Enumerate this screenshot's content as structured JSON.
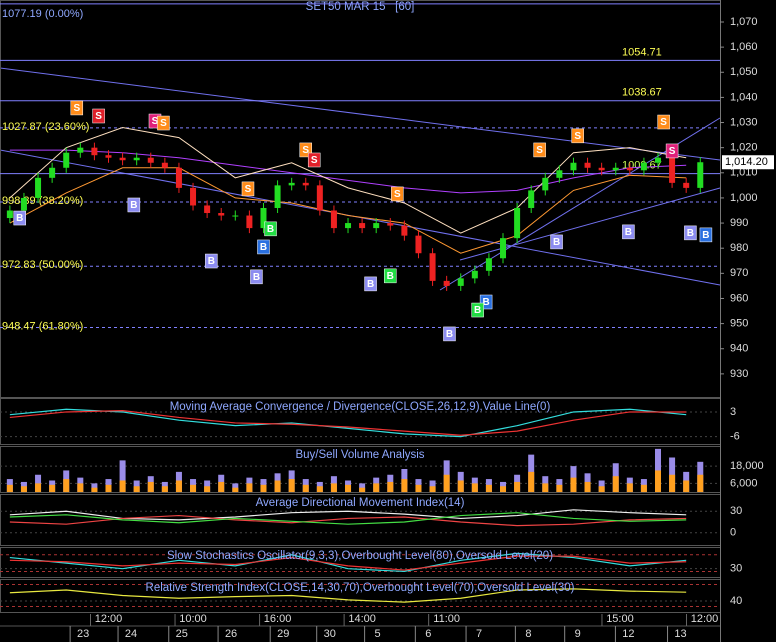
{
  "chart_data": [
    {
      "type": "candlestick",
      "title": "SET50 MAR 15   [60]",
      "xlim": [
        -0.7,
        50.4
      ],
      "xticks": [
        {
          "value": 7.0,
          "label": "12:00"
        },
        {
          "value": 13.0,
          "label": "10:00"
        },
        {
          "value": 19.0,
          "label": "16:00"
        },
        {
          "value": 25.0,
          "label": "14:00"
        },
        {
          "value": 31.0,
          "label": "11:00"
        },
        {
          "value": 43.3,
          "label": "15:00"
        },
        {
          "value": 49.3,
          "label": "12:00"
        }
      ],
      "date_ticks": [
        {
          "value": 5.2,
          "label": "23"
        },
        {
          "value": 8.6,
          "label": "24"
        },
        {
          "value": 12.2,
          "label": "25"
        },
        {
          "value": 15.7,
          "label": "26"
        },
        {
          "value": 19.4,
          "label": "29"
        },
        {
          "value": 22.7,
          "label": "30"
        },
        {
          "value": 26.1,
          "label": "5"
        },
        {
          "value": 29.7,
          "label": "6"
        },
        {
          "value": 33.3,
          "label": "7"
        },
        {
          "value": 36.8,
          "label": "8"
        },
        {
          "value": 40.3,
          "label": "9"
        },
        {
          "value": 43.9,
          "label": "12"
        },
        {
          "value": 47.6,
          "label": "13"
        }
      ],
      "ylim": [
        920.8,
        1078.75
      ],
      "yticks": [
        {
          "value": 1070,
          "label": "1,070"
        },
        {
          "value": 1060,
          "label": "1,060"
        },
        {
          "value": 1050,
          "label": "1,050"
        },
        {
          "value": 1040,
          "label": "1,040"
        },
        {
          "value": 1030,
          "label": "1,030"
        },
        {
          "value": 1020,
          "label": "1,020"
        },
        {
          "value": 1010,
          "label": "1,010"
        },
        {
          "value": 1000,
          "label": "1,000"
        },
        990,
        980,
        970,
        960,
        950,
        940,
        930
      ],
      "fib_levels": [
        {
          "value": 1077.19,
          "label": "1077.19 (0.00%)"
        },
        {
          "value": 1027.87,
          "label": "1027.87 (23.60%)"
        },
        {
          "value": 998.39,
          "label": "998.39 (38.20%)"
        },
        {
          "value": 972.83,
          "label": "972.83 (50.00%)"
        },
        {
          "value": 948.47,
          "label": "948.47 (61.80%)"
        }
      ],
      "price_lines": [
        1054.71,
        1038.67,
        1009.67
      ],
      "last": {
        "value": 1014.2,
        "label": "1,014.20"
      },
      "up_color": "#22dd22",
      "down_color": "#ee2222",
      "open": [
        992,
        995,
        1000,
        1008,
        1012,
        1018,
        1020,
        1017,
        1016,
        1015,
        1016,
        1014,
        1012,
        1004,
        997,
        994,
        993,
        993,
        988,
        996,
        1005,
        1006,
        1005,
        995,
        988,
        990,
        988,
        990,
        989,
        985,
        978,
        967,
        965,
        968,
        971,
        976,
        984,
        996,
        1003,
        1008,
        1011,
        1014,
        1012,
        1011,
        1012,
        1011,
        1014,
        1016,
        1006,
        1004
      ],
      "high": [
        997,
        1002,
        1010,
        1014,
        1020,
        1022,
        1022,
        1019,
        1018,
        1018,
        1018,
        1016,
        1014,
        1006,
        999,
        996,
        995,
        995,
        998,
        1007,
        1008,
        1008,
        1007,
        997,
        992,
        992,
        992,
        992,
        991,
        987,
        980,
        969,
        970,
        973,
        978,
        986,
        998,
        1005,
        1010,
        1013,
        1016,
        1016,
        1014,
        1014,
        1014,
        1016,
        1018,
        1018,
        1008,
        1016.2
      ],
      "low": [
        990,
        993,
        998,
        1006,
        1010,
        1016,
        1015,
        1014,
        1013,
        1013,
        1012,
        1010,
        1002,
        995,
        992,
        991,
        991,
        986,
        986,
        994,
        1003,
        1003,
        993,
        986,
        986,
        986,
        986,
        987,
        983,
        976,
        965,
        963,
        963,
        966,
        969,
        974,
        982,
        994,
        1001,
        1006,
        1009,
        1010,
        1009,
        1009,
        1009,
        1009,
        1012,
        1004,
        1002,
        1002
      ],
      "close": [
        995,
        1000,
        1008,
        1012,
        1018,
        1020,
        1017,
        1016,
        1015,
        1016,
        1014,
        1012,
        1004,
        997,
        994,
        993,
        993,
        988,
        996,
        1005,
        1006,
        1005,
        995,
        988,
        990,
        988,
        990,
        989,
        985,
        978,
        967,
        965,
        968,
        971,
        976,
        984,
        996,
        1003,
        1008,
        1011,
        1014,
        1012,
        1011,
        1012,
        1011,
        1014,
        1016,
        1006,
        1004,
        1014.2
      ],
      "overlays": {
        "x": [
          0,
          4,
          8,
          12,
          16,
          20,
          24,
          28,
          32,
          36,
          40,
          44,
          48
        ],
        "series": [
          {
            "color": "#ff9933",
            "values": [
              990,
              1002,
              1012,
              1012,
              1000,
              998,
              993,
              990,
              978,
              985,
              1003,
              1009,
              1008
            ]
          },
          {
            "color": "#b040ff",
            "values": [
              1019,
              1019,
              1018,
              1016,
              1013,
              1010,
              1007,
              1004,
              1002,
              1003,
              1008,
              1012,
              1013
            ]
          },
          {
            "color": "#ffe0c0",
            "values": [
              1000,
              1020,
              1028,
              1024,
              1008,
              1014,
              1004,
              998,
              986,
              996,
              1018,
              1020,
              1016
            ]
          }
        ]
      },
      "signals": [
        {
          "label": "S",
          "color": "#ff8c1a",
          "x": 4.75,
          "y": 1035.8
        },
        {
          "label": "S",
          "color": "#e0202a",
          "x": 6.3,
          "y": 1032.6
        },
        {
          "label": "S",
          "color": "#e0207a",
          "x": 10.3,
          "y": 1030.6
        },
        {
          "label": "S",
          "color": "#ff8c1a",
          "x": 10.9,
          "y": 1029.8
        },
        {
          "label": "S",
          "color": "#ff8c1a",
          "x": 21.0,
          "y": 1019.1
        },
        {
          "label": "S",
          "color": "#e0202a",
          "x": 21.6,
          "y": 1015.1
        },
        {
          "label": "S",
          "color": "#ff8c1a",
          "x": 16.9,
          "y": 1003.6
        },
        {
          "label": "S",
          "color": "#ff8c1a",
          "x": 27.5,
          "y": 1001.6
        },
        {
          "label": "S",
          "color": "#ff8c1a",
          "x": 37.6,
          "y": 1019.1
        },
        {
          "label": "S",
          "color": "#ff8c1a",
          "x": 40.3,
          "y": 1024.7
        },
        {
          "label": "S",
          "color": "#ff8c1a",
          "x": 46.4,
          "y": 1030.2
        },
        {
          "label": "S",
          "color": "#e0207a",
          "x": 47.0,
          "y": 1018.7
        },
        {
          "label": "B",
          "color": "#8c8cf0",
          "x": 0.7,
          "y": 992.0
        },
        {
          "label": "B",
          "color": "#8c8cf0",
          "x": 8.8,
          "y": 997.2
        },
        {
          "label": "B",
          "color": "#8c8cf0",
          "x": 14.3,
          "y": 974.9
        },
        {
          "label": "B",
          "color": "#22dd44",
          "x": 18.5,
          "y": 987.7
        },
        {
          "label": "B",
          "color": "#2a70e0",
          "x": 18.0,
          "y": 980.5
        },
        {
          "label": "B",
          "color": "#8c8cf0",
          "x": 17.5,
          "y": 968.6
        },
        {
          "label": "B",
          "color": "#8c8cf0",
          "x": 25.6,
          "y": 965.8
        },
        {
          "label": "B",
          "color": "#22dd44",
          "x": 27.0,
          "y": 969.0
        },
        {
          "label": "B",
          "color": "#8c8cf0",
          "x": 31.2,
          "y": 945.9
        },
        {
          "label": "B",
          "color": "#2a70e0",
          "x": 33.8,
          "y": 958.6
        },
        {
          "label": "B",
          "color": "#22dd44",
          "x": 33.2,
          "y": 955.4
        },
        {
          "label": "B",
          "color": "#8c8cf0",
          "x": 38.8,
          "y": 982.5
        },
        {
          "label": "B",
          "color": "#8c8cf0",
          "x": 43.9,
          "y": 986.5
        },
        {
          "label": "B",
          "color": "#8c8cf0",
          "x": 48.3,
          "y": 986.1
        },
        {
          "label": "B",
          "color": "#2a70e0",
          "x": 49.4,
          "y": 985.3
        }
      ]
    },
    {
      "type": "line",
      "title": "Moving Average Convergence / Divergence(CLOSE,26,12,9),Value Line(0)",
      "ylim": [
        -8.7,
        8.1
      ],
      "yticks": [
        3,
        -6
      ],
      "x": [
        0,
        4,
        8,
        12,
        16,
        20,
        24,
        28,
        32,
        36,
        40,
        44,
        48
      ],
      "series": [
        {
          "color": "#33dddd",
          "values": [
            2,
            4,
            3,
            0,
            -2,
            -1,
            -3,
            -5,
            -6,
            -2,
            3,
            4,
            2
          ]
        },
        {
          "color": "#ee3333",
          "values": [
            1,
            3,
            3.5,
            1,
            -1,
            -1.5,
            -2.5,
            -4,
            -5.5,
            -4,
            0,
            3,
            3
          ]
        }
      ]
    },
    {
      "type": "bar",
      "title": "Buy/Sell Volume Analysis",
      "ylim": [
        0,
        32000
      ],
      "yticks": [
        {
          "value": 18000,
          "label": "18,000"
        },
        {
          "value": 6000,
          "label": "6,000"
        }
      ],
      "series": [
        {
          "color": "#9a8ce8",
          "values": [
            9000,
            7000,
            12000,
            8000,
            15000,
            10000,
            6000,
            9000,
            22000,
            8000,
            11000,
            7000,
            14000,
            9000,
            8000,
            12000,
            6000,
            10000,
            9000,
            13000,
            15000,
            9000,
            7000,
            11000,
            8000,
            6000,
            10000,
            12000,
            16000,
            9000,
            8000,
            22000,
            14000,
            10000,
            9000,
            7000,
            12000,
            26000,
            11000,
            9000,
            18000,
            13000,
            8000,
            20000,
            10000,
            9000,
            30000,
            24000,
            14000,
            21000
          ]
        },
        {
          "color": "#ffa020",
          "values": [
            5000,
            4000,
            6000,
            5000,
            9000,
            6000,
            3000,
            5000,
            8000,
            4000,
            7000,
            4000,
            8000,
            5000,
            4000,
            7000,
            3000,
            6000,
            5000,
            8000,
            9000,
            5000,
            4000,
            6000,
            5000,
            3000,
            6000,
            7000,
            9000,
            5000,
            4000,
            12000,
            8000,
            6000,
            5000,
            4000,
            7000,
            14000,
            6000,
            5000,
            10000,
            7000,
            4000,
            11000,
            6000,
            5000,
            15000,
            12000,
            8000,
            12000
          ]
        }
      ]
    },
    {
      "type": "line",
      "title": "Average Directional Movement Index(14)",
      "ylim": [
        -17,
        54
      ],
      "yticks": [
        30,
        0
      ],
      "x": [
        0,
        4,
        8,
        12,
        16,
        20,
        24,
        28,
        32,
        36,
        40,
        44,
        48
      ],
      "series": [
        {
          "color": "#eeeeee",
          "values": [
            25,
            30,
            20,
            18,
            22,
            28,
            30,
            26,
            20,
            24,
            32,
            28,
            25
          ]
        },
        {
          "color": "#ee4444",
          "values": [
            15,
            12,
            20,
            24,
            18,
            14,
            20,
            22,
            15,
            10,
            12,
            18,
            20
          ]
        },
        {
          "color": "#44dd44",
          "values": [
            22,
            25,
            18,
            14,
            20,
            16,
            12,
            15,
            24,
            28,
            20,
            16,
            18
          ]
        }
      ]
    },
    {
      "type": "line",
      "title": "Slow Stochastics Oscillator(9,3,3),Overbought Level(80),Oversold Level(20)",
      "ylim": [
        0,
        108
      ],
      "yticks": [
        30
      ],
      "levels": [
        80,
        20
      ],
      "x": [
        0,
        4,
        8,
        12,
        16,
        20,
        24,
        28,
        32,
        36,
        40,
        44,
        48
      ],
      "series": [
        {
          "color": "#33dddd",
          "values": [
            70,
            50,
            30,
            60,
            40,
            80,
            30,
            20,
            60,
            85,
            70,
            40,
            60
          ]
        },
        {
          "color": "#ee3333",
          "values": [
            60,
            55,
            40,
            50,
            45,
            70,
            40,
            25,
            50,
            75,
            75,
            50,
            55
          ]
        }
      ]
    },
    {
      "type": "line",
      "title": "Relative Strength Index(CLOSE,14,30,70),Overbought Level(70),Oversold Level(30)",
      "ylim": [
        20,
        80
      ],
      "yticks": [
        40
      ],
      "levels": [
        70,
        30
      ],
      "x": [
        0,
        4,
        8,
        12,
        16,
        20,
        24,
        28,
        32,
        36,
        40,
        44,
        48
      ],
      "series": [
        {
          "color": "#e8e840",
          "values": [
            55,
            60,
            50,
            45,
            48,
            50,
            42,
            38,
            45,
            60,
            62,
            58,
            56
          ]
        }
      ]
    }
  ]
}
